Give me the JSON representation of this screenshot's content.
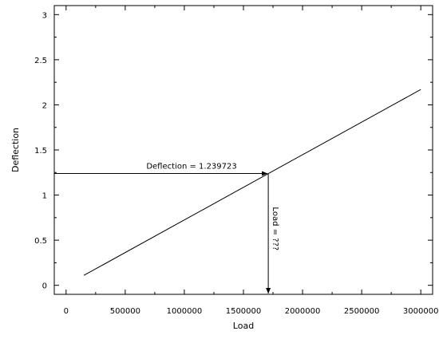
{
  "chart_data": {
    "type": "line",
    "xlabel": "Load",
    "ylabel": "Deflection",
    "xlim": [
      -100000,
      3100000
    ],
    "ylim": [
      -0.1,
      3.1
    ],
    "x_ticks": [
      0,
      500000,
      1000000,
      1500000,
      2000000,
      2500000,
      3000000
    ],
    "x_tick_labels": [
      "0",
      "500000",
      "1000000",
      "1500000",
      "2000000",
      "2500000",
      "3000000"
    ],
    "y_ticks": [
      0,
      0.5,
      1,
      1.5,
      2,
      2.5,
      3
    ],
    "y_tick_labels": [
      "0",
      "0.5",
      "1",
      "1.5",
      "2",
      "2.5",
      "3"
    ],
    "series": [
      {
        "x": [
          150000,
          3000000
        ],
        "y": [
          0.11,
          2.17
        ]
      }
    ],
    "annotations": {
      "deflection_label": "Deflection = 1.239723",
      "load_label": "Load = ???",
      "point": {
        "x": 1710000,
        "y": 1.239723
      }
    },
    "grid": false
  }
}
